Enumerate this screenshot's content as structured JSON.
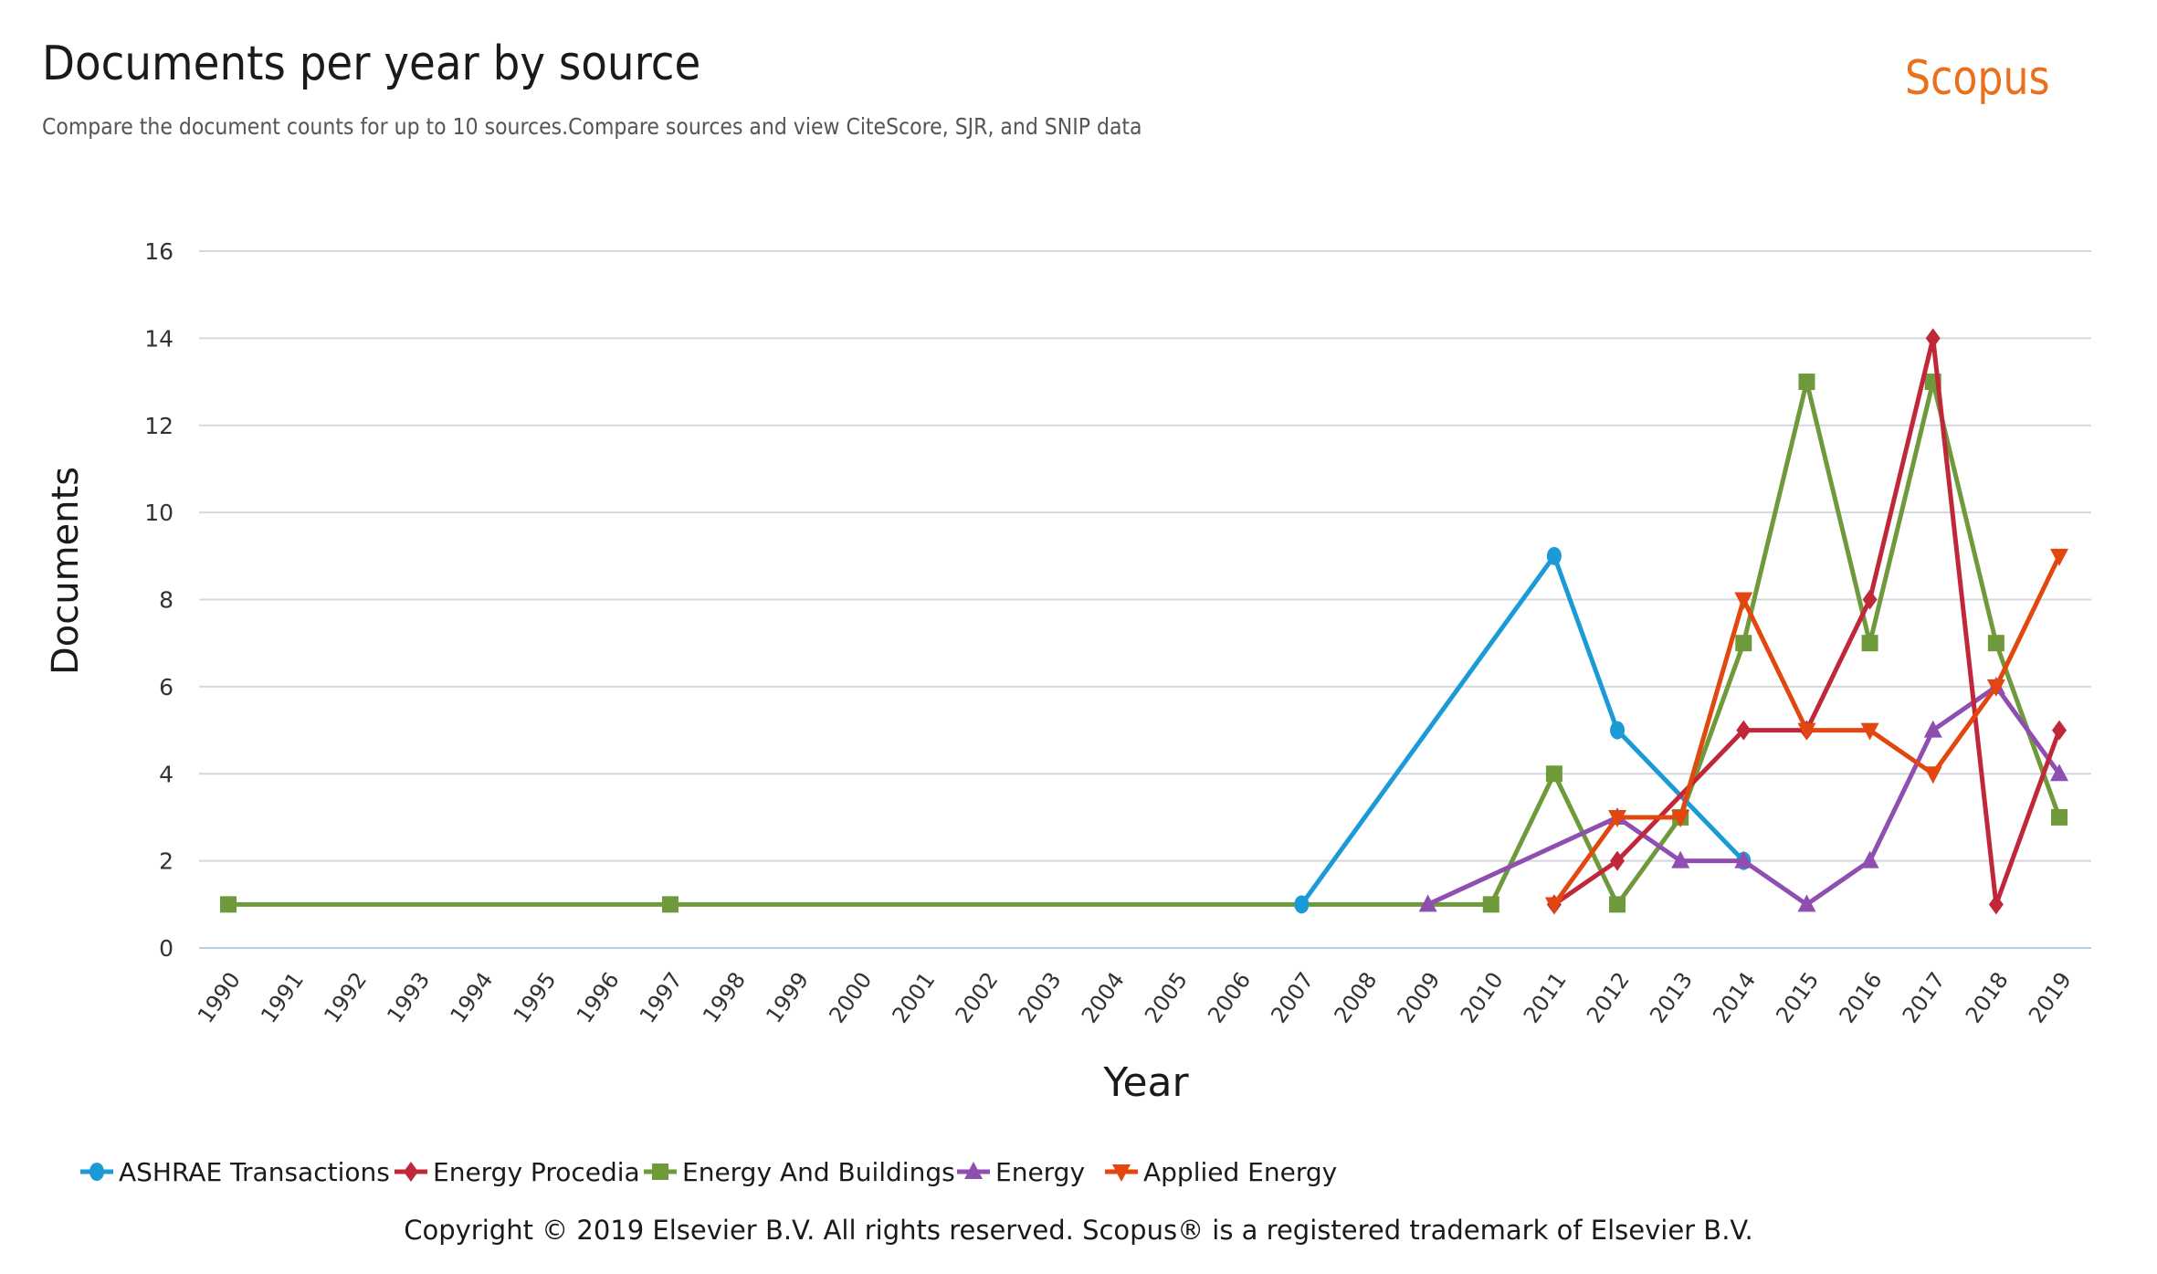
{
  "header": {
    "title": "Documents per year by source",
    "subtitle": "Compare the document counts for up to 10 sources.Compare sources and view CiteScore, SJR, and SNIP data",
    "brand": "Scopus"
  },
  "footer": {
    "copyright": "Copyright © 2019 Elsevier B.V. All rights reserved. Scopus® is a registered trademark of Elsevier B.V."
  },
  "chart_data": {
    "type": "line",
    "title": "Documents per year by source",
    "xlabel": "Year",
    "ylabel": "Documents",
    "ylim": [
      0,
      16
    ],
    "yticks": [
      0,
      2,
      4,
      6,
      8,
      10,
      12,
      14,
      16
    ],
    "grid": true,
    "legend_position": "bottom",
    "categories": [
      "1990",
      "1991",
      "1992",
      "1993",
      "1994",
      "1995",
      "1996",
      "1997",
      "1998",
      "1999",
      "2000",
      "2001",
      "2002",
      "2003",
      "2004",
      "2005",
      "2006",
      "2007",
      "2008",
      "2009",
      "2010",
      "2011",
      "2012",
      "2013",
      "2014",
      "2015",
      "2016",
      "2017",
      "2018",
      "2019"
    ],
    "series": [
      {
        "name": "ASHRAE Transactions",
        "color": "#1a9ad6",
        "marker": "circle",
        "points": [
          [
            2007,
            1
          ],
          [
            2011,
            9
          ],
          [
            2012,
            5
          ],
          [
            2014,
            2
          ]
        ]
      },
      {
        "name": "Energy Procedia",
        "color": "#c0283a",
        "marker": "diamond",
        "points": [
          [
            2011,
            1
          ],
          [
            2012,
            2
          ],
          [
            2014,
            5
          ],
          [
            2015,
            5
          ],
          [
            2016,
            8
          ],
          [
            2017,
            14
          ],
          [
            2018,
            1
          ],
          [
            2019,
            5
          ]
        ]
      },
      {
        "name": "Energy And Buildings",
        "color": "#6f9a3c",
        "marker": "square",
        "points": [
          [
            1990,
            1
          ],
          [
            1997,
            1
          ],
          [
            2010,
            1
          ],
          [
            2011,
            4
          ],
          [
            2012,
            1
          ],
          [
            2013,
            3
          ],
          [
            2014,
            7
          ],
          [
            2015,
            13
          ],
          [
            2016,
            7
          ],
          [
            2017,
            13
          ],
          [
            2018,
            7
          ],
          [
            2019,
            3
          ]
        ]
      },
      {
        "name": "Energy",
        "color": "#8e4fb0",
        "marker": "triangle-up",
        "points": [
          [
            2009,
            1
          ],
          [
            2012,
            3
          ],
          [
            2013,
            2
          ],
          [
            2014,
            2
          ],
          [
            2015,
            1
          ],
          [
            2016,
            2
          ],
          [
            2017,
            5
          ],
          [
            2018,
            6
          ],
          [
            2019,
            4
          ]
        ]
      },
      {
        "name": "Applied Energy",
        "color": "#e2470f",
        "marker": "triangle-down",
        "points": [
          [
            2011,
            1
          ],
          [
            2012,
            3
          ],
          [
            2013,
            3
          ],
          [
            2014,
            8
          ],
          [
            2015,
            5
          ],
          [
            2016,
            5
          ],
          [
            2017,
            4
          ],
          [
            2018,
            6
          ],
          [
            2019,
            9
          ]
        ]
      }
    ]
  }
}
